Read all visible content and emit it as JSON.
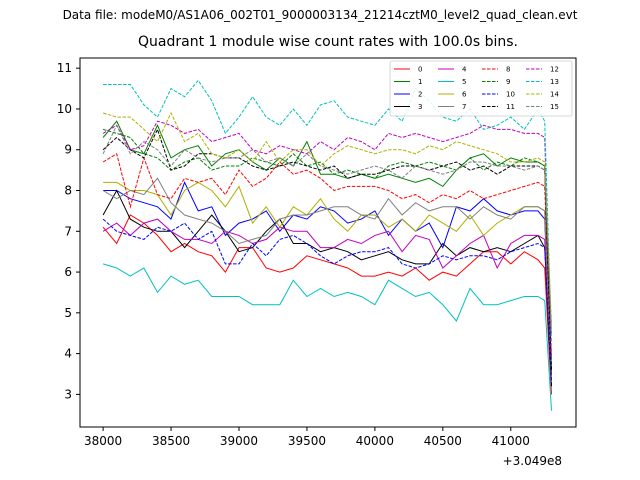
{
  "figure": {
    "suptitle": "Data file: modeM0/AS1A06_002T01_9000003134_21214cztM0_level2_quad_clean.evt"
  },
  "chart_data": {
    "type": "line",
    "title": "Quadrant 1 module wise count rates with 100.0s bins.",
    "xlabel": "",
    "ylabel": "",
    "x_offset_label": "+3.049e8",
    "xlim": [
      37830,
      41480
    ],
    "ylim": [
      2.2,
      11.25
    ],
    "xticks": [
      38000,
      38500,
      39000,
      39500,
      40000,
      40500,
      41000
    ],
    "xtick_labels": [
      "38000",
      "38500",
      "39000",
      "39500",
      "40000",
      "40500",
      "41000"
    ],
    "yticks": [
      3,
      4,
      5,
      6,
      7,
      8,
      9,
      10,
      11
    ],
    "ytick_labels": [
      "3",
      "4",
      "5",
      "6",
      "7",
      "8",
      "9",
      "10",
      "11"
    ],
    "grid": false,
    "legend_position": "upper-right",
    "legend_columns": 4,
    "x": [
      38000,
      38100,
      38200,
      38300,
      38400,
      38500,
      38600,
      38700,
      38800,
      38900,
      39000,
      39100,
      39200,
      39300,
      39400,
      39500,
      39600,
      39700,
      39800,
      39900,
      40000,
      40100,
      40200,
      40300,
      40400,
      40500,
      40600,
      40700,
      40800,
      40900,
      41000,
      41100,
      41200,
      41250,
      41300
    ],
    "series": [
      {
        "name": "0",
        "color": "#ff0000",
        "dash": "solid",
        "values": [
          7.1,
          6.7,
          7.4,
          7.2,
          6.9,
          6.5,
          6.7,
          6.5,
          6.4,
          6.0,
          6.6,
          6.6,
          6.1,
          6.0,
          6.1,
          6.4,
          6.3,
          6.2,
          6.1,
          5.9,
          5.9,
          6.0,
          5.9,
          6.1,
          5.8,
          6.0,
          5.9,
          6.2,
          6.5,
          6.5,
          6.2,
          6.5,
          6.3,
          6.1,
          3.0
        ]
      },
      {
        "name": "1",
        "color": "#008000",
        "dash": "solid",
        "values": [
          9.3,
          9.7,
          9.0,
          8.9,
          9.6,
          8.8,
          9.0,
          9.1,
          8.6,
          8.9,
          9.0,
          8.7,
          8.5,
          8.8,
          8.6,
          9.2,
          8.4,
          8.4,
          8.3,
          8.4,
          8.3,
          8.4,
          8.3,
          8.2,
          8.3,
          8.1,
          8.5,
          8.8,
          8.9,
          8.6,
          8.8,
          8.7,
          8.7,
          8.6,
          3.2
        ]
      },
      {
        "name": "2",
        "color": "#0000ff",
        "dash": "solid",
        "values": [
          8.0,
          8.0,
          7.8,
          7.7,
          7.6,
          7.3,
          8.2,
          7.5,
          7.6,
          6.9,
          7.2,
          7.3,
          7.5,
          7.0,
          7.4,
          7.3,
          7.6,
          7.5,
          7.2,
          7.3,
          7.5,
          6.9,
          7.3,
          7.0,
          7.2,
          6.6,
          7.6,
          7.5,
          7.8,
          7.5,
          7.4,
          7.5,
          7.5,
          7.3,
          3.3
        ]
      },
      {
        "name": "3",
        "color": "#000000",
        "dash": "solid",
        "values": [
          7.4,
          8.0,
          7.3,
          7.1,
          7.0,
          7.0,
          6.6,
          7.0,
          7.4,
          7.0,
          6.5,
          6.6,
          7.0,
          7.3,
          6.7,
          6.7,
          6.5,
          6.6,
          6.5,
          6.3,
          6.4,
          6.5,
          6.3,
          6.2,
          6.2,
          6.7,
          6.4,
          6.6,
          6.5,
          6.6,
          6.5,
          6.7,
          6.9,
          6.6,
          3.2
        ]
      },
      {
        "name": "4",
        "color": "#c000c0",
        "dash": "solid",
        "values": [
          7.0,
          7.2,
          6.9,
          7.2,
          7.3,
          7.0,
          6.8,
          6.8,
          6.7,
          7.0,
          6.9,
          6.7,
          6.8,
          7.1,
          7.0,
          7.0,
          6.6,
          6.6,
          6.8,
          6.7,
          6.9,
          7.0,
          6.5,
          6.9,
          6.8,
          6.1,
          6.4,
          6.7,
          6.9,
          6.1,
          6.7,
          6.9,
          6.9,
          6.8,
          3.4
        ]
      },
      {
        "name": "5",
        "color": "#00c0c0",
        "dash": "solid",
        "values": [
          6.2,
          6.1,
          5.9,
          6.1,
          5.5,
          5.9,
          5.7,
          5.8,
          5.4,
          5.4,
          5.4,
          5.2,
          5.2,
          5.2,
          5.8,
          5.4,
          5.6,
          5.4,
          5.5,
          5.4,
          5.2,
          5.8,
          5.6,
          5.4,
          5.5,
          5.2,
          4.8,
          5.6,
          5.2,
          5.2,
          5.3,
          5.4,
          5.4,
          5.3,
          2.6
        ]
      },
      {
        "name": "6",
        "color": "#b0b000",
        "dash": "solid",
        "values": [
          8.2,
          8.2,
          8.0,
          8.0,
          7.9,
          7.4,
          8.0,
          8.2,
          8.0,
          7.6,
          8.1,
          7.2,
          7.6,
          7.1,
          7.6,
          7.4,
          7.8,
          7.3,
          7.0,
          7.4,
          7.4,
          7.1,
          7.3,
          7.0,
          7.4,
          7.2,
          7.0,
          7.4,
          6.9,
          7.2,
          7.4,
          7.6,
          7.6,
          7.5,
          3.4
        ]
      },
      {
        "name": "7",
        "color": "#808080",
        "dash": "solid",
        "values": [
          8.0,
          7.8,
          8.0,
          7.9,
          8.3,
          7.7,
          7.4,
          7.3,
          7.2,
          7.0,
          6.7,
          6.8,
          6.9,
          7.3,
          7.4,
          7.4,
          7.5,
          7.6,
          7.6,
          7.4,
          7.3,
          7.8,
          7.4,
          7.7,
          7.5,
          7.6,
          7.6,
          7.3,
          7.6,
          7.4,
          7.3,
          7.6,
          7.6,
          7.5,
          3.3
        ]
      },
      {
        "name": "8",
        "color": "#ff0000",
        "dash": "dashed",
        "values": [
          8.7,
          8.9,
          7.6,
          8.8,
          7.9,
          7.8,
          8.3,
          8.2,
          8.3,
          7.9,
          8.5,
          8.1,
          8.3,
          8.7,
          8.4,
          8.5,
          8.3,
          8.0,
          8.1,
          8.1,
          8.1,
          8.0,
          7.8,
          7.9,
          7.7,
          7.9,
          7.8,
          8.0,
          7.8,
          7.9,
          8.0,
          8.1,
          8.2,
          8.1,
          3.6
        ]
      },
      {
        "name": "9",
        "color": "#008000",
        "dash": "dashed",
        "values": [
          9.5,
          9.4,
          9.3,
          8.9,
          8.8,
          8.5,
          8.7,
          8.8,
          8.5,
          8.6,
          8.6,
          8.8,
          8.7,
          8.6,
          8.9,
          8.6,
          8.7,
          8.4,
          8.5,
          8.4,
          8.3,
          8.6,
          8.7,
          8.6,
          8.7,
          8.6,
          8.5,
          8.8,
          8.5,
          8.7,
          8.6,
          8.8,
          8.7,
          8.6,
          3.5
        ]
      },
      {
        "name": "10",
        "color": "#0000ff",
        "dash": "dashed",
        "values": [
          7.3,
          7.0,
          6.9,
          6.8,
          7.1,
          7.0,
          7.2,
          6.8,
          7.0,
          6.2,
          6.2,
          6.7,
          6.4,
          6.8,
          6.9,
          6.7,
          6.4,
          6.2,
          6.4,
          6.5,
          6.5,
          6.6,
          6.2,
          6.1,
          6.2,
          6.4,
          6.3,
          6.4,
          6.4,
          6.3,
          6.5,
          6.6,
          6.7,
          6.6,
          3.3
        ]
      },
      {
        "name": "11",
        "color": "#000000",
        "dash": "dashed",
        "values": [
          9.0,
          9.3,
          9.0,
          8.8,
          9.5,
          8.5,
          8.6,
          8.9,
          8.9,
          8.8,
          8.8,
          8.6,
          8.5,
          8.6,
          8.7,
          8.6,
          8.5,
          8.6,
          8.3,
          8.4,
          8.4,
          8.5,
          8.6,
          8.6,
          8.5,
          8.6,
          8.7,
          8.5,
          8.6,
          8.4,
          8.6,
          8.6,
          8.6,
          8.5,
          3.6
        ]
      },
      {
        "name": "12",
        "color": "#c000c0",
        "dash": "dashed",
        "values": [
          9.4,
          9.6,
          9.0,
          9.1,
          9.7,
          9.6,
          9.4,
          9.5,
          9.2,
          9.3,
          9.4,
          9.0,
          8.9,
          9.1,
          9.0,
          8.9,
          9.2,
          9.0,
          9.3,
          9.2,
          9.0,
          9.4,
          9.3,
          9.4,
          9.3,
          9.2,
          9.3,
          9.4,
          9.6,
          9.5,
          9.5,
          9.4,
          9.4,
          9.3,
          3.9
        ]
      },
      {
        "name": "13",
        "color": "#00c0c0",
        "dash": "dashed",
        "values": [
          10.6,
          10.6,
          10.6,
          10.1,
          9.8,
          10.5,
          10.3,
          10.7,
          10.2,
          9.4,
          9.8,
          10.3,
          9.8,
          9.6,
          10.0,
          9.6,
          10.1,
          10.2,
          9.8,
          9.7,
          9.6,
          10.0,
          9.7,
          10.5,
          10.2,
          9.8,
          9.7,
          10.0,
          9.5,
          9.6,
          9.8,
          9.5,
          10.0,
          9.7,
          4.3
        ]
      },
      {
        "name": "14",
        "color": "#b0b000",
        "dash": "dashed",
        "values": [
          9.9,
          9.8,
          9.8,
          9.5,
          9.2,
          9.9,
          9.2,
          9.4,
          8.9,
          8.8,
          9.0,
          8.7,
          9.2,
          8.7,
          9.0,
          9.0,
          8.6,
          8.9,
          9.1,
          9.0,
          8.9,
          9.0,
          9.0,
          8.9,
          9.1,
          9.0,
          9.2,
          9.1,
          9.0,
          8.9,
          8.7,
          8.7,
          8.8,
          8.7,
          4.7
        ]
      },
      {
        "name": "15",
        "color": "#808080",
        "dash": "dashed",
        "values": [
          8.9,
          9.6,
          8.9,
          9.2,
          9.0,
          8.6,
          9.0,
          8.8,
          8.7,
          8.8,
          8.8,
          9.0,
          8.7,
          8.8,
          8.6,
          8.9,
          8.6,
          8.5,
          8.4,
          8.5,
          8.6,
          8.5,
          8.3,
          8.6,
          8.5,
          8.4,
          8.5,
          8.7,
          8.7,
          8.6,
          8.6,
          8.5,
          8.6,
          8.5,
          4.5
        ]
      }
    ]
  }
}
